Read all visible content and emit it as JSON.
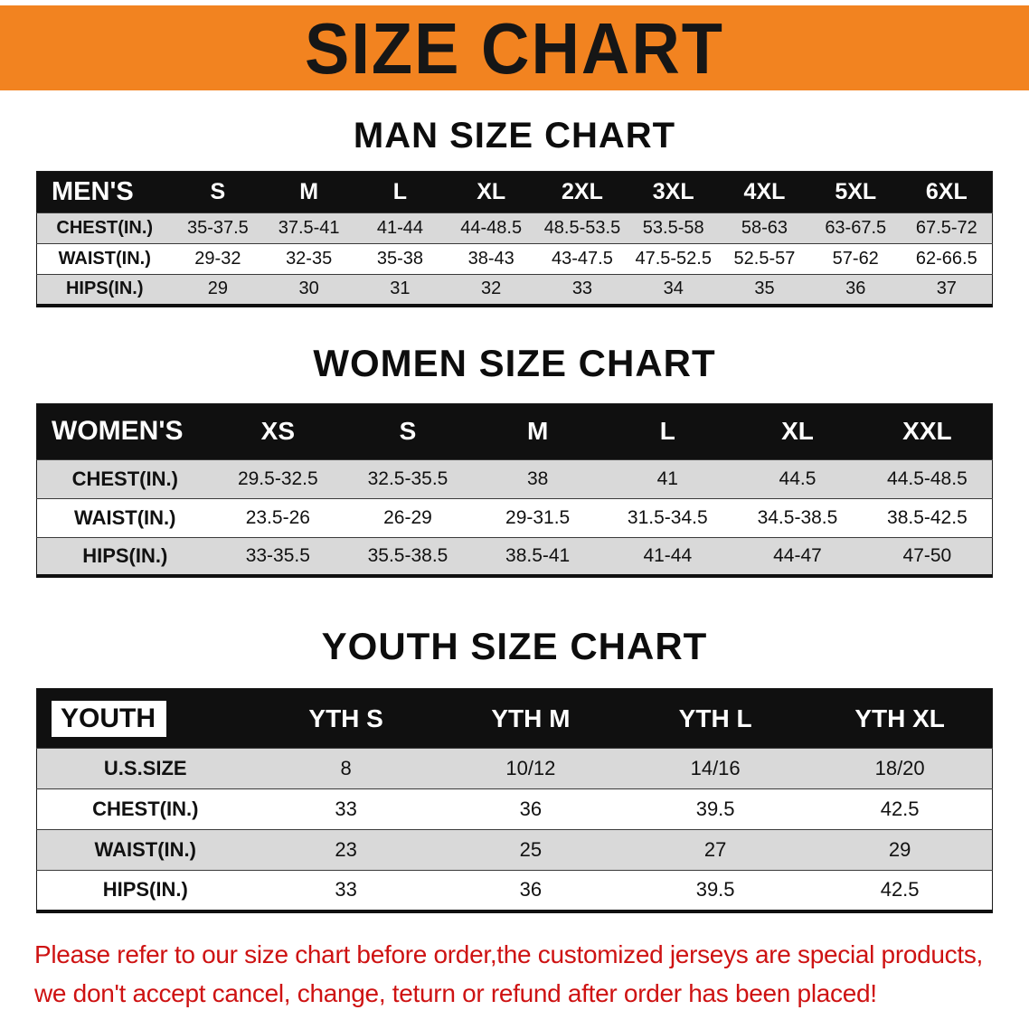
{
  "banner": {
    "title": "SIZE CHART"
  },
  "sections": [
    {
      "heading": "MAN SIZE CHART",
      "table": {
        "corner_label": "MEN'S",
        "columns": [
          "S",
          "M",
          "L",
          "XL",
          "2XL",
          "3XL",
          "4XL",
          "5XL",
          "6XL"
        ],
        "rows": [
          {
            "label": "CHEST(IN.)",
            "values": [
              "35-37.5",
              "37.5-41",
              "41-44",
              "44-48.5",
              "48.5-53.5",
              "53.5-58",
              "58-63",
              "63-67.5",
              "67.5-72"
            ]
          },
          {
            "label": "WAIST(IN.)",
            "values": [
              "29-32",
              "32-35",
              "35-38",
              "38-43",
              "43-47.5",
              "47.5-52.5",
              "52.5-57",
              "57-62",
              "62-66.5"
            ]
          },
          {
            "label": "HIPS(IN.)",
            "values": [
              "29",
              "30",
              "31",
              "32",
              "33",
              "34",
              "35",
              "36",
              "37"
            ]
          }
        ]
      }
    },
    {
      "heading": "WOMEN SIZE CHART",
      "table": {
        "corner_label": "WOMEN'S",
        "columns": [
          "XS",
          "S",
          "M",
          "L",
          "XL",
          "XXL"
        ],
        "rows": [
          {
            "label": "CHEST(IN.)",
            "values": [
              "29.5-32.5",
              "32.5-35.5",
              "38",
              "41",
              "44.5",
              "44.5-48.5"
            ]
          },
          {
            "label": "WAIST(IN.)",
            "values": [
              "23.5-26",
              "26-29",
              "29-31.5",
              "31.5-34.5",
              "34.5-38.5",
              "38.5-42.5"
            ]
          },
          {
            "label": "HIPS(IN.)",
            "values": [
              "33-35.5",
              "35.5-38.5",
              "38.5-41",
              "41-44",
              "44-47",
              "47-50"
            ]
          }
        ]
      }
    },
    {
      "heading": "YOUTH SIZE CHART",
      "table": {
        "corner_label": "YOUTH",
        "columns": [
          "YTH S",
          "YTH M",
          "YTH L",
          "YTH XL"
        ],
        "rows": [
          {
            "label": "U.S.SIZE",
            "values": [
              "8",
              "10/12",
              "14/16",
              "18/20"
            ]
          },
          {
            "label": "CHEST(IN.)",
            "values": [
              "33",
              "36",
              "39.5",
              "42.5"
            ]
          },
          {
            "label": "WAIST(IN.)",
            "values": [
              "23",
              "25",
              "27",
              "29"
            ]
          },
          {
            "label": "HIPS(IN.)",
            "values": [
              "33",
              "36",
              "39.5",
              "42.5"
            ]
          }
        ]
      }
    }
  ],
  "disclaimer": {
    "line1": "Please refer to our size chart before order,the customized jerseys are special products,",
    "line2": "we don't accept cancel, change, teturn or refund after order has been placed!"
  },
  "colors": {
    "banner_bg": "#F28320",
    "table_header_bg": "#101010",
    "row_stripe": "#D9D9D9",
    "disclaimer_text": "#CE1212"
  }
}
